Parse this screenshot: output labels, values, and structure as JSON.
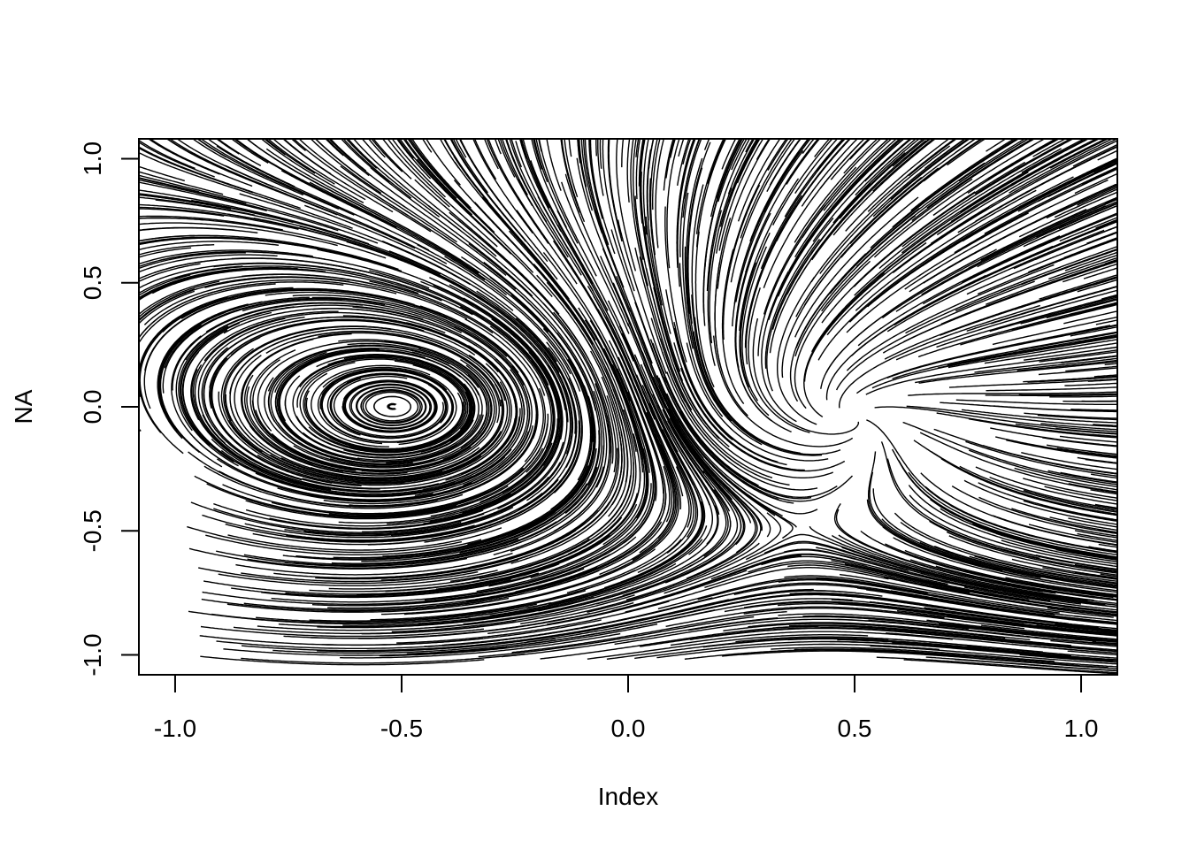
{
  "chart_data": {
    "type": "streamline",
    "title": "",
    "xlabel": "Index",
    "ylabel": "NA",
    "xlim": [
      -1.08,
      1.08
    ],
    "ylim": [
      -1.08,
      1.08
    ],
    "xticks": [
      -1.0,
      -0.5,
      0.0,
      0.5,
      1.0
    ],
    "xtick_labels": [
      "-1.0",
      "-0.5",
      "0.0",
      "0.5",
      "1.0"
    ],
    "yticks": [
      -1.0,
      -0.5,
      0.0,
      0.5,
      1.0
    ],
    "ytick_labels": [
      "-1.0",
      "-0.5",
      "0.0",
      "0.5",
      "1.0"
    ],
    "grid": false,
    "line_color": "#000000",
    "critical_points": [
      {
        "x": -0.5,
        "y": 0.0,
        "kind": "center"
      },
      {
        "x": 0.5,
        "y": 0.0,
        "kind": "source"
      }
    ],
    "seed_grid": {
      "x_from": -0.98,
      "x_to": 1.06,
      "y_from": -1.02,
      "y_to": 1.04,
      "nx": 34,
      "ny": 40
    }
  }
}
